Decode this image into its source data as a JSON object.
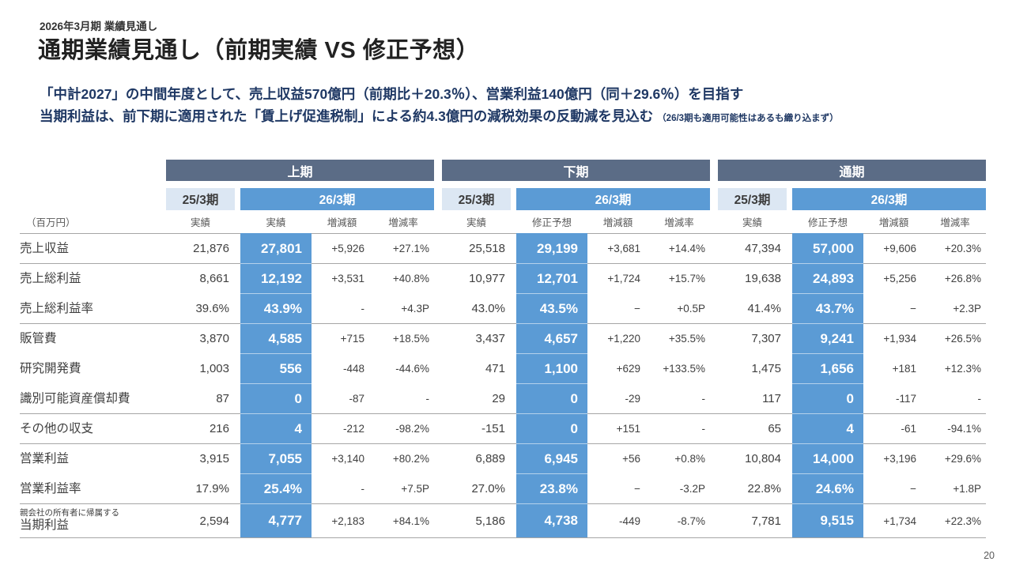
{
  "header": {
    "eyebrow": "2026年3月期 業績見通し",
    "title": "通期業績見通し（前期実績 VS 修正予想）"
  },
  "summary": {
    "line1": "「中計2027」の中間年度として、売上収益570億円（前期比＋20.3％）、営業利益140億円（同＋29.6％）を目指す",
    "line2": "当期利益は、前下期に適用された「賃上げ促進税制」による約4.3億円の減税効果の反動減を見込む",
    "line2_note": "（26/3期も適用可能性はあるも織り込まず）"
  },
  "colors": {
    "section_bar": "#5b6c86",
    "prior_header_bg": "#dce7f3",
    "accent_blue": "#5b9bd5",
    "summary_text": "#1f3864"
  },
  "table": {
    "unit_label": "（百万円）",
    "sections": [
      {
        "title": "上期",
        "prior_label": "25/3期",
        "current_label": "26/3期",
        "prior_sub": "実績",
        "cur_sub": "実績",
        "diff_sub": "増減額",
        "rate_sub": "増減率"
      },
      {
        "title": "下期",
        "prior_label": "25/3期",
        "current_label": "26/3期",
        "prior_sub": "実績",
        "cur_sub": "修正予想",
        "diff_sub": "増減額",
        "rate_sub": "増減率"
      },
      {
        "title": "通期",
        "prior_label": "25/3期",
        "current_label": "26/3期",
        "prior_sub": "実績",
        "cur_sub": "修正予想",
        "diff_sub": "増減額",
        "rate_sub": "増減率"
      }
    ],
    "rows": [
      {
        "label": "売上収益",
        "sublabel": "",
        "group": true,
        "h1": [
          "21,876",
          "27,801",
          "+5,926",
          "+27.1%"
        ],
        "h2": [
          "25,518",
          "29,199",
          "+3,681",
          "+14.4%"
        ],
        "fy": [
          "47,394",
          "57,000",
          "+9,606",
          "+20.3%"
        ]
      },
      {
        "label": "売上総利益",
        "sublabel": "",
        "group": true,
        "h1": [
          "8,661",
          "12,192",
          "+3,531",
          "+40.8%"
        ],
        "h2": [
          "10,977",
          "12,701",
          "+1,724",
          "+15.7%"
        ],
        "fy": [
          "19,638",
          "24,893",
          "+5,256",
          "+26.8%"
        ]
      },
      {
        "label": "売上総利益率",
        "sublabel": "",
        "group": false,
        "h1": [
          "39.6%",
          "43.9%",
          "-",
          "+4.3P"
        ],
        "h2": [
          "43.0%",
          "43.5%",
          "−",
          "+0.5P"
        ],
        "fy": [
          "41.4%",
          "43.7%",
          "−",
          "+2.3P"
        ]
      },
      {
        "label": "販管費",
        "sublabel": "",
        "group": true,
        "h1": [
          "3,870",
          "4,585",
          "+715",
          "+18.5%"
        ],
        "h2": [
          "3,437",
          "4,657",
          "+1,220",
          "+35.5%"
        ],
        "fy": [
          "7,307",
          "9,241",
          "+1,934",
          "+26.5%"
        ]
      },
      {
        "label": "研究開発費",
        "sublabel": "",
        "group": false,
        "h1": [
          "1,003",
          "556",
          "-448",
          "-44.6%"
        ],
        "h2": [
          "471",
          "1,100",
          "+629",
          "+133.5%"
        ],
        "fy": [
          "1,475",
          "1,656",
          "+181",
          "+12.3%"
        ]
      },
      {
        "label": "識別可能資産償却費",
        "sublabel": "",
        "group": false,
        "h1": [
          "87",
          "0",
          "-87",
          "-"
        ],
        "h2": [
          "29",
          "0",
          "-29",
          "-"
        ],
        "fy": [
          "117",
          "0",
          "-117",
          "-"
        ]
      },
      {
        "label": "その他の収支",
        "sublabel": "",
        "group": true,
        "h1": [
          "216",
          "4",
          "-212",
          "-98.2%"
        ],
        "h2": [
          "-151",
          "0",
          "+151",
          "-"
        ],
        "fy": [
          "65",
          "4",
          "-61",
          "-94.1%"
        ]
      },
      {
        "label": "営業利益",
        "sublabel": "",
        "group": true,
        "h1": [
          "3,915",
          "7,055",
          "+3,140",
          "+80.2%"
        ],
        "h2": [
          "6,889",
          "6,945",
          "+56",
          "+0.8%"
        ],
        "fy": [
          "10,804",
          "14,000",
          "+3,196",
          "+29.6%"
        ]
      },
      {
        "label": "営業利益率",
        "sublabel": "",
        "group": false,
        "h1": [
          "17.9%",
          "25.4%",
          "-",
          "+7.5P"
        ],
        "h2": [
          "27.0%",
          "23.8%",
          "−",
          "-3.2P"
        ],
        "fy": [
          "22.8%",
          "24.6%",
          "−",
          "+1.8P"
        ]
      },
      {
        "label": "当期利益",
        "sublabel": "親会社の所有者に帰属する",
        "group": true,
        "h1": [
          "2,594",
          "4,777",
          "+2,183",
          "+84.1%"
        ],
        "h2": [
          "5,186",
          "4,738",
          "-449",
          "-8.7%"
        ],
        "fy": [
          "7,781",
          "9,515",
          "+1,734",
          "+22.3%"
        ]
      }
    ]
  },
  "page": {
    "number": "20"
  }
}
